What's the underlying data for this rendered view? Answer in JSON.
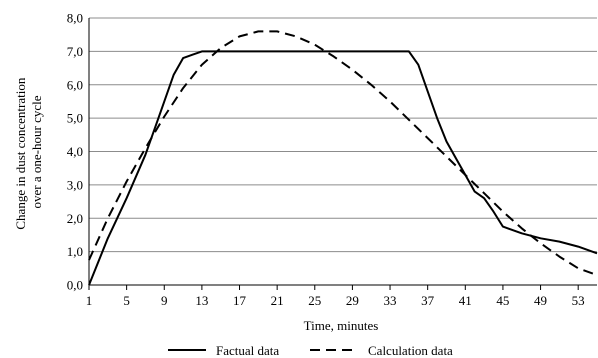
{
  "chart_data": {
    "type": "line",
    "title": "",
    "xlabel": "Time, minutes",
    "ylabel_lines": [
      "Change in dust concentration",
      "over a one-hour cycle"
    ],
    "x_ticks": [
      "1",
      "5",
      "9",
      "13",
      "17",
      "21",
      "25",
      "29",
      "33",
      "37",
      "41",
      "45",
      "49",
      "53"
    ],
    "y_ticks": [
      "0,0",
      "1,0",
      "2,0",
      "3,0",
      "4,0",
      "5,0",
      "6,0",
      "7,0",
      "8,0"
    ],
    "xlim": [
      1,
      55
    ],
    "ylim": [
      0,
      8
    ],
    "grid": "horizontal",
    "legend_position": "bottom",
    "series": [
      {
        "name": "Factual data",
        "style": "solid",
        "color": "#000000",
        "x": [
          1,
          3,
          5,
          7,
          8,
          9,
          10,
          11,
          12,
          13,
          15,
          17,
          19,
          21,
          23,
          25,
          27,
          29,
          31,
          33,
          34,
          35,
          36,
          37,
          38,
          39,
          40,
          41,
          42,
          43,
          44,
          45,
          47,
          49,
          51,
          53,
          55
        ],
        "y": [
          0.0,
          1.4,
          2.6,
          3.9,
          4.7,
          5.5,
          6.3,
          6.8,
          6.9,
          7.0,
          7.0,
          7.0,
          7.0,
          7.0,
          7.0,
          7.0,
          7.0,
          7.0,
          7.0,
          7.0,
          7.0,
          7.0,
          6.6,
          5.8,
          5.0,
          4.3,
          3.8,
          3.3,
          2.8,
          2.6,
          2.2,
          1.75,
          1.55,
          1.4,
          1.3,
          1.15,
          0.95
        ]
      },
      {
        "name": "Calculation data",
        "style": "dashed",
        "color": "#000000",
        "x": [
          1,
          3,
          5,
          7,
          9,
          11,
          13,
          15,
          17,
          19,
          21,
          23,
          25,
          27,
          29,
          31,
          33,
          35,
          37,
          39,
          41,
          43,
          45,
          47,
          49,
          51,
          53,
          55
        ],
        "y": [
          0.75,
          2.0,
          3.1,
          4.1,
          5.05,
          5.9,
          6.6,
          7.1,
          7.45,
          7.6,
          7.6,
          7.45,
          7.2,
          6.85,
          6.45,
          6.0,
          5.5,
          4.95,
          4.4,
          3.85,
          3.3,
          2.75,
          2.2,
          1.7,
          1.25,
          0.85,
          0.5,
          0.3
        ]
      }
    ]
  }
}
